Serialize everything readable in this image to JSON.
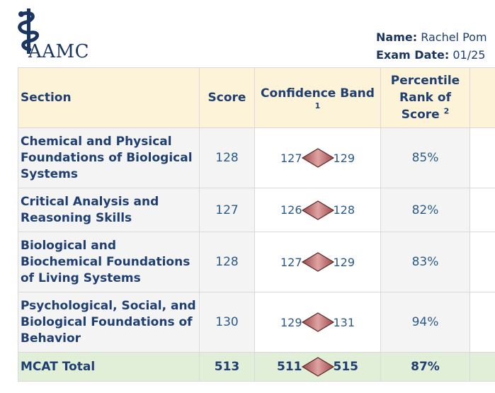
{
  "logo": {
    "text": "AAMC"
  },
  "meta": {
    "name_label": "Name:",
    "name_value": "Rachel Pom",
    "date_label": "Exam Date:",
    "date_value": "01/25"
  },
  "table": {
    "headers": {
      "section": "Section",
      "score": "Score",
      "band": "Confidence Band",
      "band_fn": "1",
      "pct_l1": "Percentile",
      "pct_l2": "Rank of",
      "pct_l3": "Score",
      "pct_fn": "2"
    },
    "rows": [
      {
        "section": "Chemical and Physical Foundations of Biological Systems",
        "score": "128",
        "band_low": "127",
        "band_high": "129",
        "percentile": "85%"
      },
      {
        "section": "Critical Analysis and Reasoning Skills",
        "score": "127",
        "band_low": "126",
        "band_high": "128",
        "percentile": "82%"
      },
      {
        "section": "Biological and Biochemical Foundations of Living Systems",
        "score": "128",
        "band_low": "127",
        "band_high": "129",
        "percentile": "83%"
      },
      {
        "section": "Psychological, Social, and Biological Foundations of Behavior",
        "score": "130",
        "band_low": "129",
        "band_high": "131",
        "percentile": "94%"
      }
    ],
    "total": {
      "section": "MCAT Total",
      "score": "513",
      "band_low": "511",
      "band_high": "515",
      "percentile": "87%"
    }
  },
  "colors": {
    "header_bg": "#fdf3d8",
    "total_bg": "#e1eed8",
    "text": "#1f3f72",
    "diamond": "#c77b7b"
  }
}
